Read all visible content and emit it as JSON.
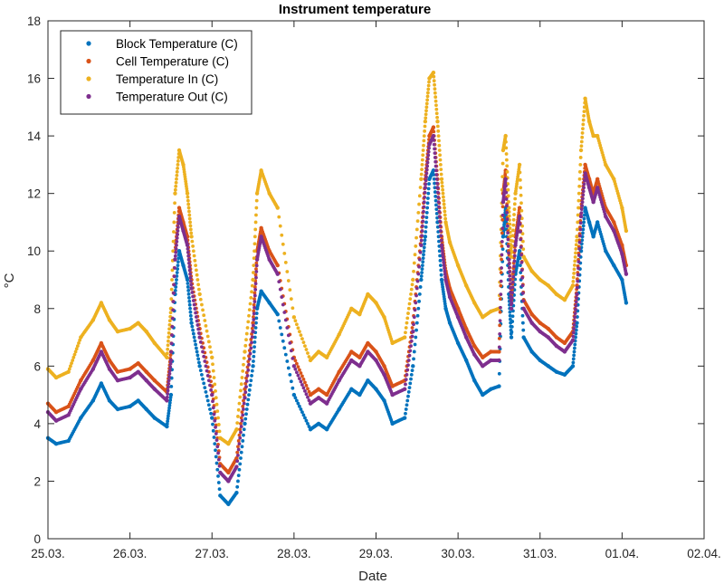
{
  "chart_data": {
    "type": "scatter",
    "title": "Instrument temperature",
    "xlabel": "Date",
    "ylabel": "°C",
    "x_ticks": [
      "25.03.",
      "26.03.",
      "27.03.",
      "28.03.",
      "29.03.",
      "30.03.",
      "31.03.",
      "01.04.",
      "02.04."
    ],
    "y_ticks": [
      "0",
      "2",
      "4",
      "6",
      "8",
      "10",
      "12",
      "14",
      "16",
      "18"
    ],
    "xlim": [
      0,
      8
    ],
    "ylim": [
      0,
      18
    ],
    "x_unit": "days since 25.03.",
    "grid": false,
    "legend_position": "top-left",
    "colors": {
      "block": "#0072BD",
      "cell": "#D95319",
      "in": "#EDB120",
      "out": "#7E2F8E"
    },
    "series": [
      {
        "name": "Block Temperature (C)",
        "color_key": "block",
        "x": [
          0.0,
          0.1,
          0.25,
          0.4,
          0.55,
          0.65,
          0.75,
          0.85,
          1.0,
          1.1,
          1.2,
          1.3,
          1.45,
          1.5,
          1.55,
          1.6,
          1.65,
          1.7,
          1.75,
          1.85,
          2.0,
          2.1,
          2.2,
          2.3,
          2.4,
          2.5,
          2.55,
          2.6,
          2.7,
          2.8,
          3.0,
          3.2,
          3.3,
          3.4,
          3.55,
          3.7,
          3.8,
          3.9,
          4.0,
          4.1,
          4.2,
          4.35,
          4.45,
          4.55,
          4.6,
          4.65,
          4.7,
          4.75,
          4.8,
          4.85,
          4.9,
          5.0,
          5.1,
          5.2,
          5.3,
          5.4,
          5.5,
          5.55,
          5.58,
          5.62,
          5.65,
          5.7,
          5.75,
          5.8,
          5.9,
          6.0,
          6.1,
          6.2,
          6.3,
          6.4,
          6.45,
          6.5,
          6.55,
          6.6,
          6.65,
          6.7,
          6.8,
          6.9,
          7.0,
          7.05
        ],
        "y": [
          3.5,
          3.3,
          3.4,
          4.2,
          4.8,
          5.4,
          4.8,
          4.5,
          4.6,
          4.8,
          4.5,
          4.2,
          3.9,
          5.0,
          8.5,
          10.0,
          9.5,
          9.0,
          7.5,
          6.0,
          4.2,
          1.5,
          1.2,
          1.6,
          4.0,
          6.0,
          8.0,
          8.6,
          8.2,
          7.8,
          5.0,
          3.8,
          4.0,
          3.8,
          4.5,
          5.2,
          5.0,
          5.5,
          5.2,
          4.8,
          4.0,
          4.2,
          6.0,
          9.0,
          10.5,
          12.5,
          12.8,
          11.0,
          9.0,
          8.0,
          7.5,
          6.8,
          6.2,
          5.5,
          5.0,
          5.2,
          5.3,
          10.5,
          11.5,
          8.5,
          7.0,
          9.2,
          10.0,
          7.0,
          6.5,
          6.2,
          6.0,
          5.8,
          5.7,
          6.0,
          7.5,
          10.0,
          11.5,
          11.0,
          10.5,
          11.0,
          10.0,
          9.5,
          9.0,
          8.2
        ]
      },
      {
        "name": "Cell Temperature (C)",
        "color_key": "cell",
        "x": [
          0.0,
          0.1,
          0.25,
          0.4,
          0.55,
          0.65,
          0.75,
          0.85,
          1.0,
          1.1,
          1.2,
          1.3,
          1.45,
          1.5,
          1.55,
          1.6,
          1.65,
          1.7,
          1.75,
          1.85,
          2.0,
          2.1,
          2.2,
          2.3,
          2.4,
          2.5,
          2.55,
          2.6,
          2.7,
          2.8,
          3.0,
          3.2,
          3.3,
          3.4,
          3.55,
          3.7,
          3.8,
          3.9,
          4.0,
          4.1,
          4.2,
          4.35,
          4.45,
          4.55,
          4.6,
          4.65,
          4.7,
          4.75,
          4.8,
          4.85,
          4.9,
          5.0,
          5.1,
          5.2,
          5.3,
          5.4,
          5.5,
          5.55,
          5.58,
          5.62,
          5.65,
          5.7,
          5.75,
          5.8,
          5.9,
          6.0,
          6.1,
          6.2,
          6.3,
          6.4,
          6.45,
          6.5,
          6.55,
          6.6,
          6.65,
          6.7,
          6.8,
          6.9,
          7.0,
          7.05
        ],
        "y": [
          4.7,
          4.4,
          4.6,
          5.5,
          6.2,
          6.8,
          6.2,
          5.8,
          5.9,
          6.1,
          5.8,
          5.5,
          5.1,
          6.5,
          10.0,
          11.5,
          11.0,
          10.5,
          9.0,
          7.3,
          5.3,
          2.6,
          2.3,
          2.8,
          5.2,
          7.5,
          10.0,
          10.8,
          10.0,
          9.5,
          6.3,
          5.0,
          5.2,
          5.0,
          5.8,
          6.5,
          6.3,
          6.8,
          6.5,
          6.0,
          5.3,
          5.5,
          7.5,
          10.5,
          12.5,
          14.0,
          14.3,
          12.5,
          10.5,
          9.3,
          8.7,
          8.0,
          7.3,
          6.7,
          6.3,
          6.5,
          6.5,
          12.0,
          12.8,
          10.0,
          8.3,
          10.5,
          11.5,
          8.3,
          7.8,
          7.5,
          7.3,
          7.0,
          6.8,
          7.2,
          8.8,
          11.5,
          13.0,
          12.5,
          12.0,
          12.5,
          11.5,
          11.0,
          10.2,
          9.5
        ]
      },
      {
        "name": "Temperature In (C)",
        "color_key": "in",
        "x": [
          0.0,
          0.1,
          0.25,
          0.4,
          0.55,
          0.65,
          0.75,
          0.85,
          1.0,
          1.1,
          1.2,
          1.3,
          1.45,
          1.5,
          1.55,
          1.6,
          1.65,
          1.7,
          1.75,
          1.85,
          2.0,
          2.1,
          2.2,
          2.3,
          2.4,
          2.5,
          2.55,
          2.6,
          2.7,
          2.8,
          3.0,
          3.2,
          3.3,
          3.4,
          3.55,
          3.7,
          3.8,
          3.9,
          4.0,
          4.1,
          4.2,
          4.35,
          4.45,
          4.55,
          4.6,
          4.65,
          4.7,
          4.75,
          4.8,
          4.85,
          4.9,
          5.0,
          5.1,
          5.2,
          5.3,
          5.4,
          5.5,
          5.55,
          5.58,
          5.62,
          5.65,
          5.7,
          5.75,
          5.8,
          5.9,
          6.0,
          6.1,
          6.2,
          6.3,
          6.4,
          6.45,
          6.5,
          6.55,
          6.6,
          6.65,
          6.7,
          6.8,
          6.9,
          7.0,
          7.05
        ],
        "y": [
          5.9,
          5.6,
          5.8,
          7.0,
          7.6,
          8.2,
          7.6,
          7.2,
          7.3,
          7.5,
          7.2,
          6.8,
          6.3,
          8.0,
          12.0,
          13.5,
          13.0,
          12.0,
          10.5,
          8.5,
          6.3,
          3.5,
          3.3,
          3.8,
          6.5,
          9.0,
          12.0,
          12.8,
          12.0,
          11.5,
          7.7,
          6.2,
          6.5,
          6.3,
          7.1,
          8.0,
          7.8,
          8.5,
          8.2,
          7.7,
          6.8,
          7.0,
          9.0,
          12.5,
          14.5,
          16.0,
          16.2,
          14.5,
          12.5,
          11.0,
          10.3,
          9.5,
          8.8,
          8.2,
          7.7,
          7.9,
          8.0,
          13.5,
          14.0,
          11.5,
          9.8,
          12.0,
          13.0,
          9.8,
          9.3,
          9.0,
          8.8,
          8.5,
          8.3,
          8.8,
          10.5,
          13.5,
          15.3,
          14.5,
          14.0,
          14.0,
          13.0,
          12.5,
          11.5,
          10.7
        ]
      },
      {
        "name": "Temperature Out (C)",
        "color_key": "out",
        "x": [
          0.0,
          0.1,
          0.25,
          0.4,
          0.55,
          0.65,
          0.75,
          0.85,
          1.0,
          1.1,
          1.2,
          1.3,
          1.45,
          1.5,
          1.55,
          1.6,
          1.65,
          1.7,
          1.75,
          1.85,
          2.0,
          2.1,
          2.2,
          2.3,
          2.4,
          2.5,
          2.55,
          2.6,
          2.7,
          2.8,
          3.0,
          3.2,
          3.3,
          3.4,
          3.55,
          3.7,
          3.8,
          3.9,
          4.0,
          4.1,
          4.2,
          4.35,
          4.45,
          4.55,
          4.6,
          4.65,
          4.7,
          4.75,
          4.8,
          4.85,
          4.9,
          5.0,
          5.1,
          5.2,
          5.3,
          5.4,
          5.5,
          5.55,
          5.58,
          5.62,
          5.65,
          5.7,
          5.75,
          5.8,
          5.9,
          6.0,
          6.1,
          6.2,
          6.3,
          6.4,
          6.45,
          6.5,
          6.55,
          6.6,
          6.65,
          6.7,
          6.8,
          6.9,
          7.0,
          7.05
        ],
        "y": [
          4.4,
          4.1,
          4.3,
          5.2,
          5.9,
          6.5,
          5.9,
          5.5,
          5.6,
          5.8,
          5.5,
          5.2,
          4.8,
          6.2,
          9.7,
          11.2,
          10.7,
          10.2,
          8.7,
          7.0,
          5.0,
          2.3,
          2.0,
          2.5,
          4.9,
          7.2,
          9.7,
          10.5,
          9.7,
          9.2,
          6.0,
          4.7,
          4.9,
          4.7,
          5.5,
          6.2,
          6.0,
          6.5,
          6.2,
          5.7,
          5.0,
          5.2,
          7.2,
          10.2,
          12.2,
          13.7,
          14.0,
          12.2,
          10.2,
          9.0,
          8.4,
          7.7,
          7.0,
          6.4,
          6.0,
          6.2,
          6.2,
          11.7,
          12.5,
          9.7,
          8.0,
          10.2,
          11.2,
          8.0,
          7.5,
          7.2,
          7.0,
          6.7,
          6.5,
          6.9,
          8.5,
          11.2,
          12.7,
          12.2,
          11.7,
          12.2,
          11.2,
          10.7,
          9.9,
          9.2
        ]
      }
    ]
  }
}
